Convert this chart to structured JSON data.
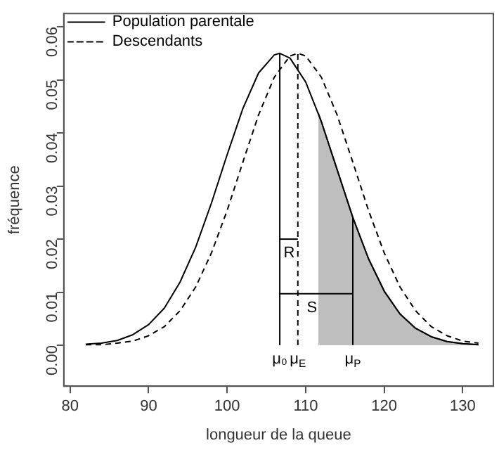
{
  "chart_data": {
    "type": "line",
    "xlabel": "longueur de la queue",
    "ylabel": "fréquence",
    "xlim": [
      79.2,
      133.9
    ],
    "ylim": [
      -0.0077,
      0.0625
    ],
    "xticks": [
      80,
      90,
      100,
      110,
      120,
      130
    ],
    "yticks": [
      {
        "value": 0,
        "label": "0.00"
      },
      {
        "value": 0.01,
        "label": "0.01"
      },
      {
        "value": 0.02,
        "label": "0.02"
      },
      {
        "value": 0.03,
        "label": "0.03"
      },
      {
        "value": 0.04,
        "label": "0.04"
      },
      {
        "value": 0.05,
        "label": "0.05"
      },
      {
        "value": 0.06,
        "label": "0.06"
      }
    ],
    "grid": false,
    "legend": "top left",
    "marker": "none",
    "series": [
      {
        "type": "area",
        "color": "#bebebe",
        "line_style": "solid",
        "x": [
          111.6,
          112,
          114,
          116,
          118,
          120,
          122,
          124,
          126,
          128,
          130,
          132
        ],
        "values": [
          0.0438,
          0.0421,
          0.0331,
          0.0241,
          0.0163,
          0.0102,
          0.0059,
          0.0032,
          0.0016,
          0.0007,
          0.0003,
          0.0001
        ]
      },
      {
        "name": "Population parentale",
        "color": "#000000",
        "line_style": "solid",
        "x": [
          82,
          84,
          86,
          88,
          90,
          92,
          94,
          96,
          98,
          100,
          102,
          104,
          106,
          106.7,
          108,
          110,
          112,
          114,
          116,
          118,
          120,
          122,
          124,
          126,
          128,
          130,
          132
        ],
        "values": [
          0.0002,
          0.0004,
          0.0009,
          0.002,
          0.0039,
          0.007,
          0.0119,
          0.0185,
          0.0268,
          0.0359,
          0.0446,
          0.0513,
          0.0547,
          0.055,
          0.0541,
          0.0496,
          0.0421,
          0.0331,
          0.0241,
          0.0163,
          0.0102,
          0.0059,
          0.0032,
          0.0016,
          0.0007,
          0.0003,
          0.0001
        ]
      },
      {
        "name": "Descendants",
        "color": "#000000",
        "line_style": "dashed",
        "x": [
          82,
          84,
          86,
          88,
          90,
          92,
          94,
          96,
          98,
          100,
          102,
          104,
          106,
          108,
          109,
          110,
          112,
          114,
          116,
          118,
          120,
          122,
          124,
          126,
          128,
          130,
          132
        ],
        "values": [
          0.0001,
          0.0001,
          0.0004,
          0.0008,
          0.0018,
          0.0035,
          0.0065,
          0.011,
          0.0174,
          0.0254,
          0.0345,
          0.0434,
          0.0505,
          0.0545,
          0.055,
          0.0545,
          0.0505,
          0.0434,
          0.0345,
          0.0254,
          0.0174,
          0.011,
          0.0065,
          0.0035,
          0.0018,
          0.0008,
          0.0004
        ]
      },
      {
        "color": "#000000",
        "line_style": "solid",
        "x": [
          106.7,
          106.7
        ],
        "values": [
          0,
          0.055
        ]
      },
      {
        "color": "#000000",
        "line_style": "dashed",
        "x": [
          109,
          109
        ],
        "values": [
          0,
          0.055
        ]
      },
      {
        "color": "#000000",
        "line_style": "solid",
        "x": [
          116,
          116
        ],
        "values": [
          0,
          0.0241
        ]
      },
      {
        "color": "#000000",
        "line_style": "solid",
        "x": [
          106.7,
          109
        ],
        "values": [
          0.02,
          0.02
        ]
      },
      {
        "color": "#000000",
        "line_style": "solid",
        "x": [
          106.7,
          116
        ],
        "values": [
          0.0097,
          0.0097
        ]
      }
    ],
    "annotations": [
      {
        "text": "μ₀",
        "x": 106.7,
        "y": 0
      },
      {
        "text": "μ$_{E}$",
        "x": 109,
        "y": 0
      },
      {
        "text": "μ$_{P}$",
        "x": 116,
        "y": 0
      },
      {
        "text": "R",
        "x": 107.9,
        "y": 0.02
      },
      {
        "text": "S",
        "x": 110.8,
        "y": 0.0097
      }
    ]
  }
}
